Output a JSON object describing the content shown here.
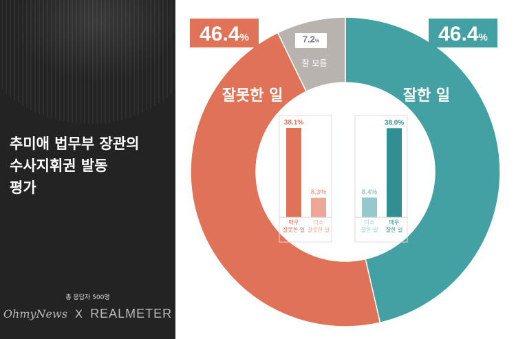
{
  "headline": {
    "lines": [
      "추미애 법무부 장관의",
      "수사지휘권 발동",
      "평가"
    ]
  },
  "respondents": "총 응답자 500명",
  "logos": {
    "ohmynews": "OhmyNews",
    "x": "X",
    "realmeter": "REALMETER"
  },
  "colors": {
    "teal": "#43a1a3",
    "coral": "#e07357",
    "gray": "#b9b3b0",
    "dark": "#232323"
  },
  "chart_data": [
    {
      "type": "pie",
      "categories": [
        "잘한 일",
        "잘못한 일",
        "잘 모름"
      ],
      "values": [
        46.4,
        46.4,
        7.2
      ],
      "labels": [
        "46.4%",
        "46.4%",
        "7.2%"
      ],
      "colors": [
        "#43a1a3",
        "#e07357",
        "#b9b3b0"
      ]
    },
    {
      "type": "bar",
      "categories": [
        "매우 잘못한 일",
        "다소 잘못한 일"
      ],
      "values": [
        38.1,
        8.3
      ],
      "labels": [
        "38.1%",
        "8.3%"
      ],
      "colors": [
        "#e07357",
        "#eda796"
      ]
    },
    {
      "type": "bar",
      "categories": [
        "다소 잘한 일",
        "매우 잘한 일"
      ],
      "values": [
        8.4,
        38.0
      ],
      "labels": [
        "8.4%",
        "38.0%"
      ],
      "colors": [
        "#96c9cb",
        "#2f8f91"
      ]
    }
  ]
}
